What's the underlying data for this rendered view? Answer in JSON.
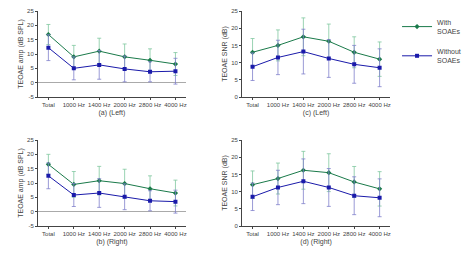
{
  "chart_data": [
    {
      "type": "line",
      "x_label": "(a) (Left)",
      "y_label": "TEOAE amp (dB SPL)",
      "categories": [
        "Total",
        "1000 Hz",
        "1400 Hz",
        "2000 Hz",
        "2800 Hz",
        "4000 Hz"
      ],
      "series": [
        {
          "name": "With\nSOAEs",
          "color": "#1a7a4a",
          "error_color": "#80c8a0",
          "marker": "diamond",
          "values": [
            16.8,
            9.0,
            11.0,
            9.0,
            7.8,
            6.5
          ],
          "errors": [
            3.5,
            4.0,
            4.5,
            4.5,
            4.0,
            4.0
          ]
        },
        {
          "name": "Without\nSOAEs",
          "color": "#1a1aaa",
          "error_color": "#8080cc",
          "marker": "square",
          "values": [
            12.2,
            5.0,
            6.2,
            4.8,
            3.8,
            4.0
          ],
          "errors": [
            4.5,
            4.0,
            5.0,
            4.5,
            3.5,
            4.5
          ]
        }
      ],
      "ylim": [
        -5,
        25
      ],
      "yticks": [
        -5,
        0,
        5,
        10,
        15,
        20,
        25
      ],
      "grid": false,
      "legend": "right"
    },
    {
      "type": "line",
      "x_label": "(b) (Right)",
      "y_label": "TEOAE amp (dB SPL)",
      "categories": [
        "Total",
        "1000 Hz",
        "1400 Hz",
        "2000 Hz",
        "2800 Hz",
        "4000 Hz"
      ],
      "series": [
        {
          "name": "With\nSOAEs",
          "color": "#1a7a4a",
          "error_color": "#80c8a0",
          "marker": "diamond",
          "values": [
            16.5,
            9.5,
            10.8,
            9.8,
            8.0,
            6.5
          ],
          "errors": [
            3.5,
            4.5,
            5.0,
            5.0,
            4.5,
            4.5
          ]
        },
        {
          "name": "Without\nSOAEs",
          "color": "#1a1aaa",
          "error_color": "#8080cc",
          "marker": "square",
          "values": [
            12.5,
            5.8,
            6.5,
            5.2,
            3.8,
            3.5
          ],
          "errors": [
            4.5,
            4.0,
            5.0,
            4.5,
            3.5,
            4.0
          ]
        }
      ],
      "ylim": [
        -5,
        25
      ],
      "yticks": [
        -5,
        0,
        5,
        10,
        15,
        20,
        25
      ],
      "grid": false
    },
    {
      "type": "line",
      "x_label": "(c) (Left)",
      "y_label": "TEOAE SNR (dB)",
      "categories": [
        "Total",
        "1000 Hz",
        "1400 Hz",
        "2000 Hz",
        "2800 Hz",
        "4000 Hz"
      ],
      "series": [
        {
          "name": "With\nSOAEs",
          "color": "#1a7a4a",
          "error_color": "#80c8a0",
          "marker": "diamond",
          "values": [
            13.0,
            15.0,
            17.5,
            16.2,
            13.0,
            11.0
          ],
          "errors": [
            4.0,
            4.5,
            5.5,
            5.0,
            4.5,
            5.0
          ]
        },
        {
          "name": "Without\nSOAEs",
          "color": "#1a1aaa",
          "error_color": "#8080cc",
          "marker": "square",
          "values": [
            8.8,
            11.5,
            13.2,
            11.2,
            9.5,
            8.5
          ],
          "errors": [
            4.0,
            5.0,
            6.5,
            5.5,
            5.5,
            5.5
          ]
        }
      ],
      "ylim": [
        0,
        25
      ],
      "yticks": [
        0,
        5,
        10,
        15,
        20,
        25
      ],
      "grid": false
    },
    {
      "type": "line",
      "x_label": "(d) (Right)",
      "y_label": "TEOAE SNR (dB)",
      "categories": [
        "Total",
        "1000 Hz",
        "1400 Hz",
        "2000 Hz",
        "2800 Hz",
        "4000 Hz"
      ],
      "series": [
        {
          "name": "With\nSOAEs",
          "color": "#1a7a4a",
          "error_color": "#80c8a0",
          "marker": "diamond",
          "values": [
            12.0,
            13.8,
            16.2,
            15.5,
            12.8,
            10.8
          ],
          "errors": [
            4.0,
            4.5,
            5.5,
            5.5,
            4.5,
            5.0
          ]
        },
        {
          "name": "Without\nSOAEs",
          "color": "#1a1aaa",
          "error_color": "#8080cc",
          "marker": "square",
          "values": [
            8.5,
            11.2,
            13.0,
            11.2,
            8.8,
            8.2
          ],
          "errors": [
            4.0,
            5.0,
            6.5,
            5.5,
            5.5,
            5.5
          ]
        }
      ],
      "ylim": [
        0,
        25
      ],
      "yticks": [
        0,
        5,
        10,
        15,
        20,
        25
      ],
      "grid": false
    }
  ]
}
